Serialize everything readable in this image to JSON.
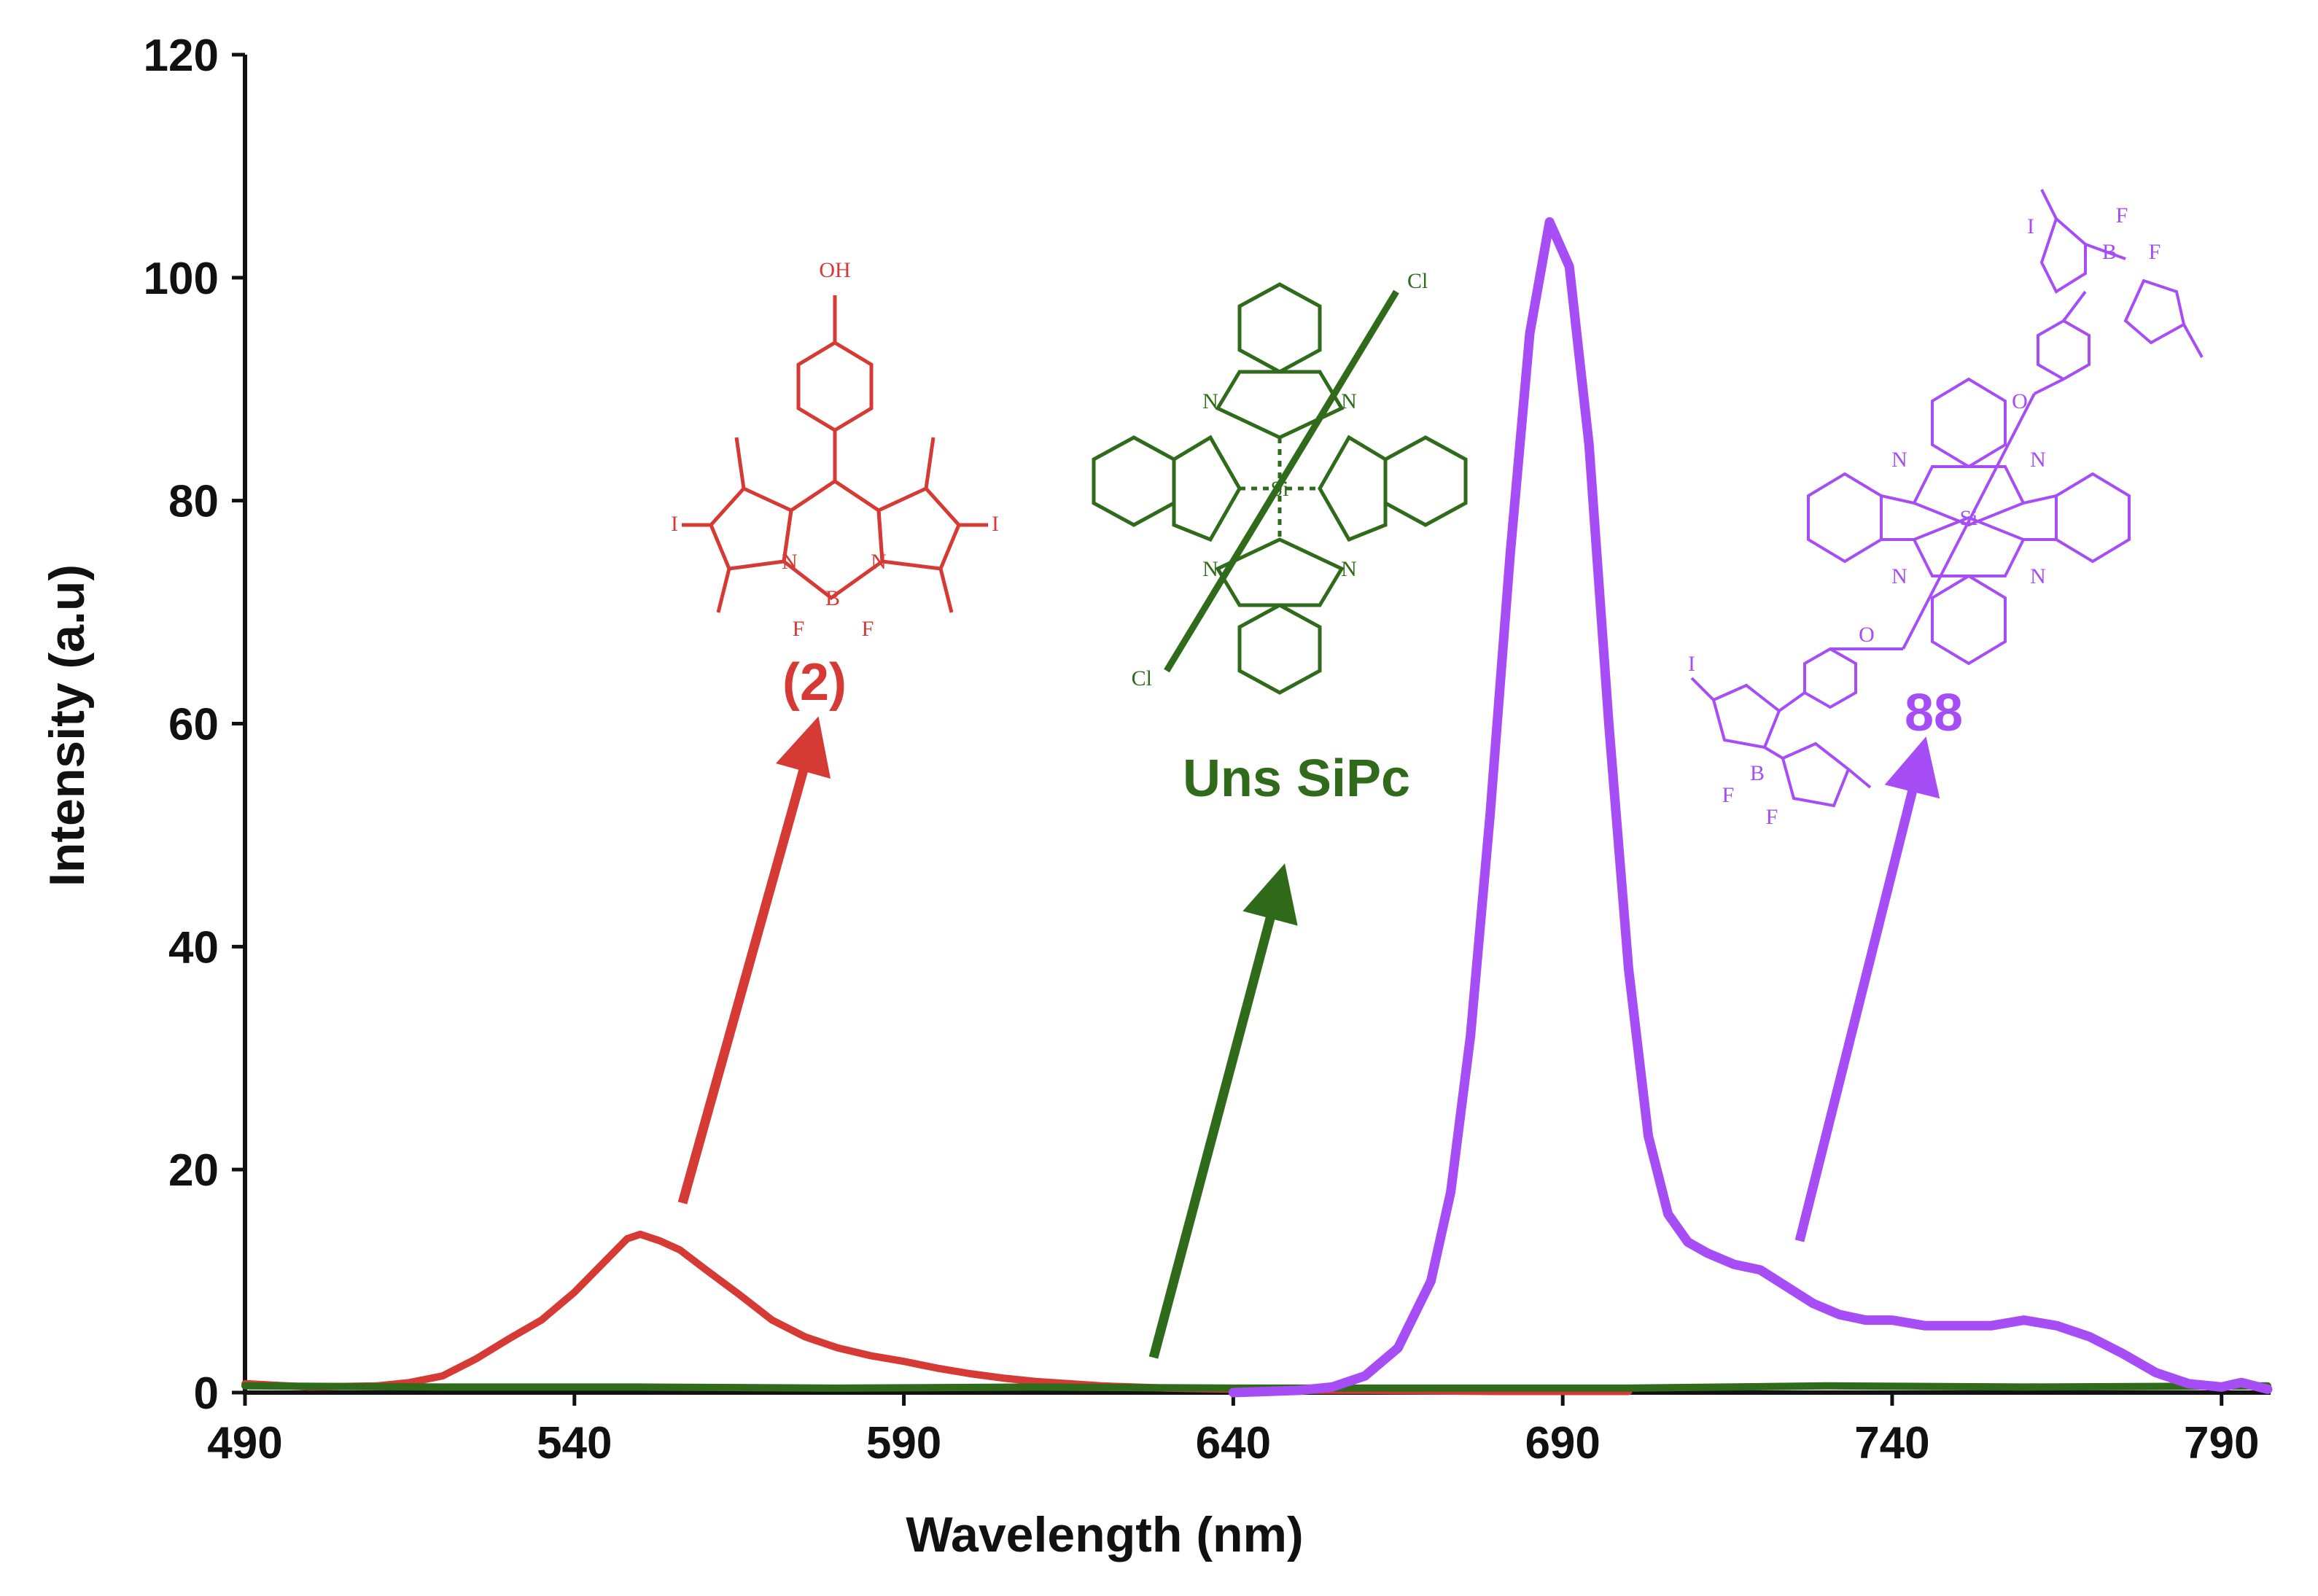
{
  "chart_data": {
    "type": "line",
    "title": "",
    "xlabel": "Wavelength (nm)",
    "ylabel": "Intensity (a.u)",
    "xlim": [
      490,
      797
    ],
    "ylim": [
      0,
      120
    ],
    "xticks": [
      490,
      540,
      590,
      640,
      690,
      740,
      790
    ],
    "yticks": [
      0,
      20,
      40,
      60,
      80,
      100,
      120
    ],
    "grid": false,
    "legend": "none",
    "series": [
      {
        "name": "(2)",
        "color": "#d63a35",
        "x": [
          490,
          500,
          510,
          515,
          520,
          525,
          530,
          535,
          540,
          545,
          548,
          550,
          553,
          556,
          560,
          565,
          570,
          575,
          580,
          585,
          590,
          595,
          600,
          605,
          610,
          615,
          620,
          630,
          640,
          650,
          660,
          680,
          700
        ],
        "y": [
          0.8,
          0.5,
          0.6,
          0.9,
          1.5,
          3.0,
          4.8,
          6.5,
          9.0,
          12.0,
          13.8,
          14.2,
          13.6,
          12.8,
          11.0,
          8.8,
          6.5,
          5.0,
          4.0,
          3.3,
          2.8,
          2.2,
          1.7,
          1.3,
          1.0,
          0.8,
          0.6,
          0.4,
          0.3,
          0.2,
          0.2,
          0.1,
          0.1
        ]
      },
      {
        "name": "Uns SiPc",
        "color": "#2f6b1a",
        "x": [
          490,
          520,
          550,
          580,
          610,
          640,
          670,
          700,
          730,
          760,
          797
        ],
        "y": [
          0.6,
          0.5,
          0.5,
          0.4,
          0.5,
          0.4,
          0.4,
          0.4,
          0.6,
          0.5,
          0.6
        ]
      },
      {
        "name": "88",
        "color": "#a64df5",
        "x": [
          640,
          650,
          655,
          660,
          665,
          670,
          673,
          676,
          679,
          682,
          685,
          688,
          691,
          694,
          697,
          700,
          703,
          706,
          709,
          712,
          716,
          720,
          724,
          728,
          732,
          736,
          740,
          745,
          750,
          755,
          760,
          765,
          770,
          775,
          780,
          785,
          790,
          793,
          797
        ],
        "y": [
          0,
          0.2,
          0.5,
          1.5,
          4.0,
          10.0,
          18.0,
          32.0,
          52.0,
          75.0,
          95.0,
          105.0,
          101.0,
          85.0,
          60.0,
          38.0,
          23.0,
          16.0,
          13.5,
          12.5,
          11.5,
          11.0,
          9.5,
          8.0,
          7.0,
          6.5,
          6.5,
          6.0,
          6.0,
          6.0,
          6.5,
          6.0,
          5.0,
          3.5,
          1.8,
          0.8,
          0.5,
          0.9,
          0.3
        ]
      }
    ],
    "annotations": [
      {
        "text": "(2)",
        "color": "#d63a35"
      },
      {
        "text": "Uns SiPc",
        "color": "#2f6b1a"
      },
      {
        "text": "88",
        "color": "#a64df5"
      }
    ]
  },
  "structures": {
    "red": {
      "oh": "OH",
      "i": "I",
      "n": "N",
      "b": "B",
      "f": "F"
    },
    "green": {
      "cl": "Cl",
      "n": "N",
      "si": "Si"
    },
    "purple": {
      "b": "B",
      "f": "F",
      "o": "O",
      "si": "Si",
      "n": "N",
      "i": "I"
    }
  }
}
